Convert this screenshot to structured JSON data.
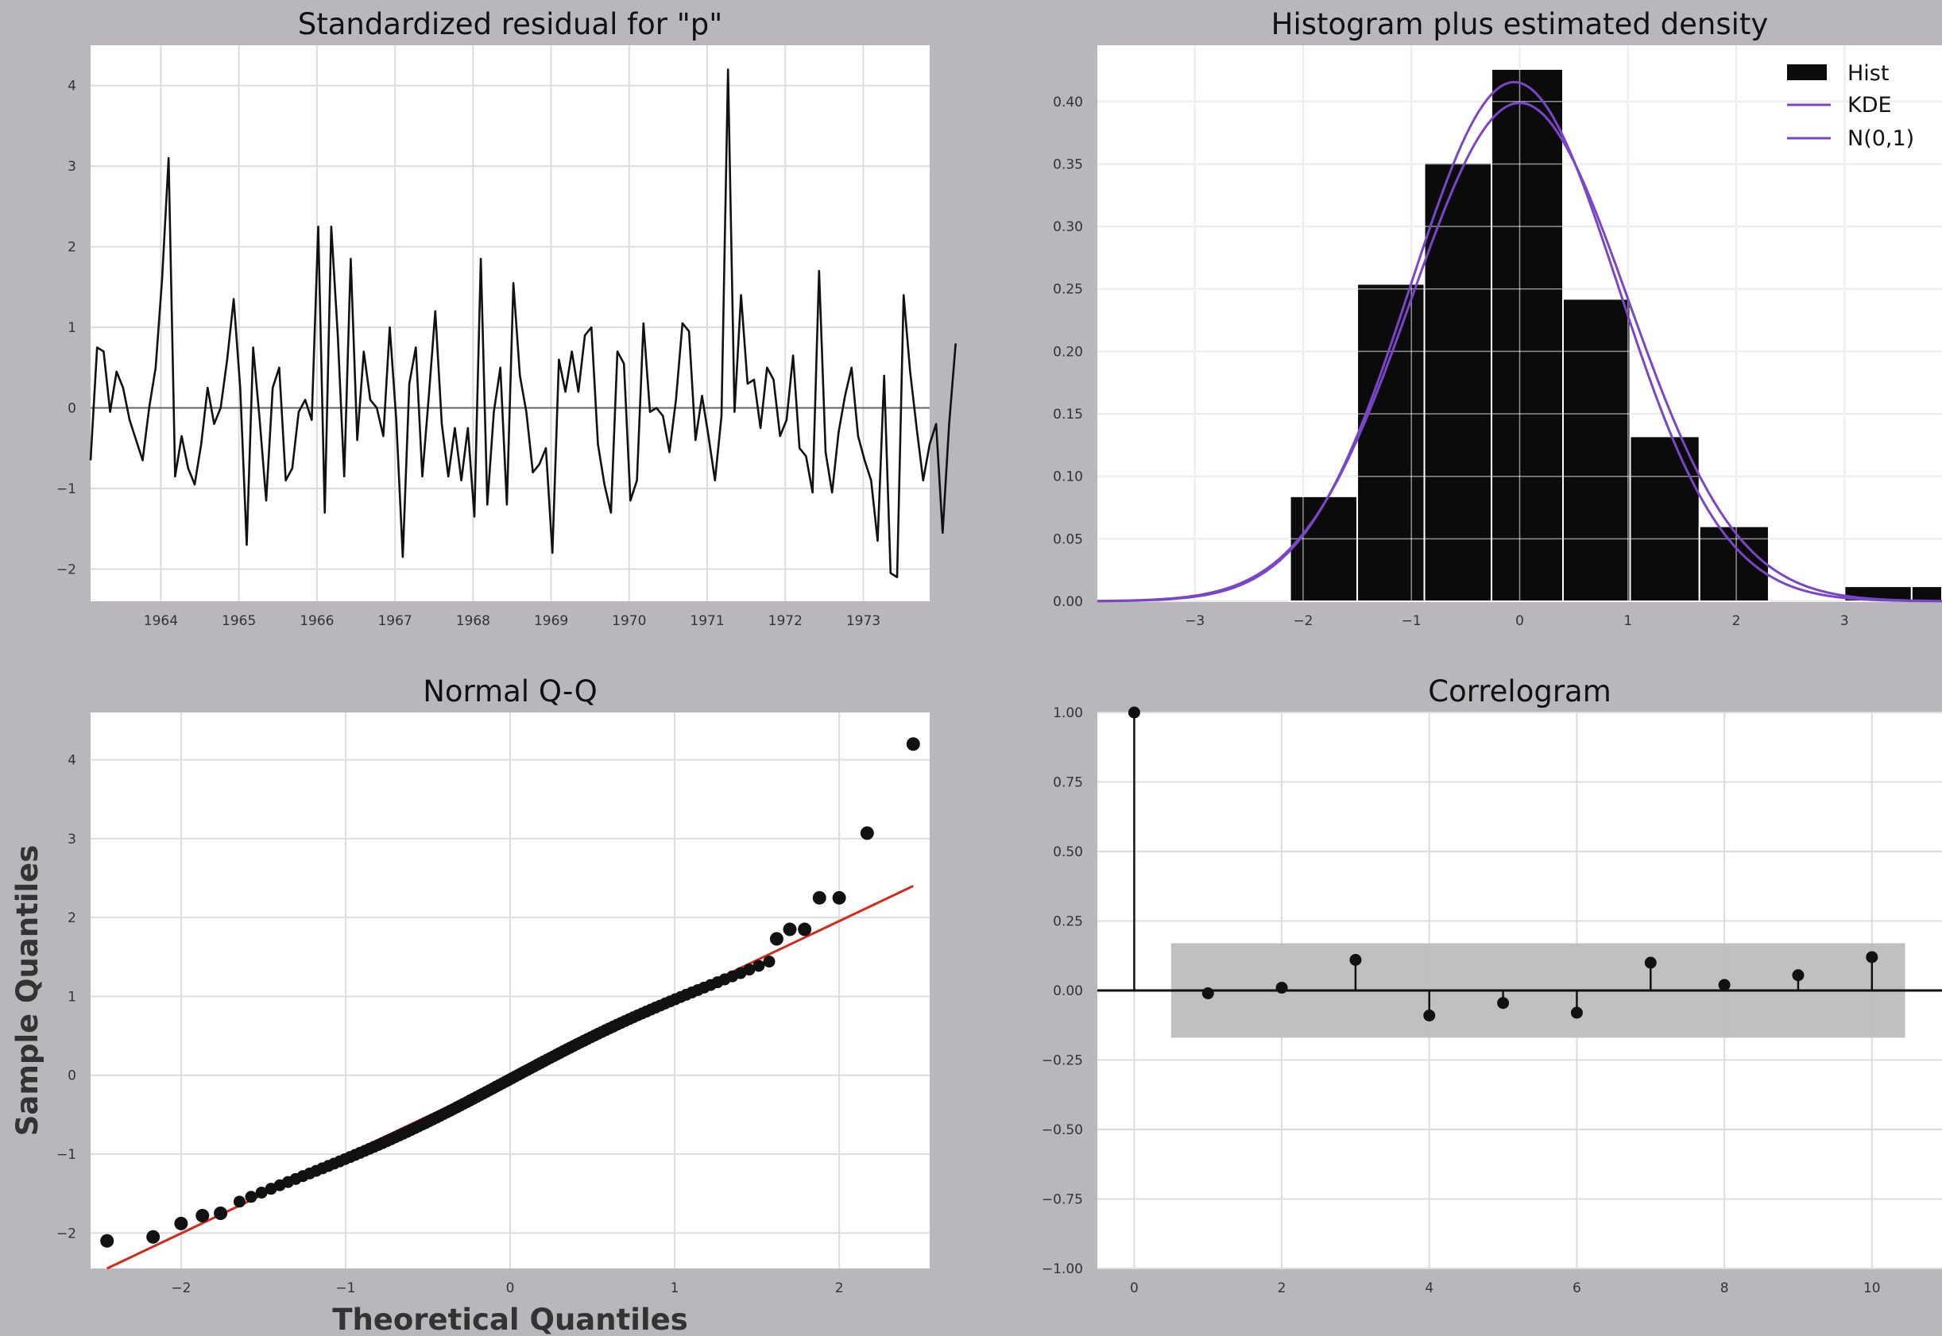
{
  "chart_data": [
    {
      "type": "line",
      "title": "Standardized residual for \"p\"",
      "xlabel": "",
      "ylabel": "",
      "xlim": [
        1963.1,
        1973.85
      ],
      "ylim": [
        -2.4,
        4.5
      ],
      "x_ticks": [
        1964,
        1965,
        1966,
        1967,
        1968,
        1969,
        1970,
        1971,
        1972,
        1973
      ],
      "y_ticks": [
        -2,
        -1,
        0,
        1,
        2,
        3,
        4
      ],
      "y_tick_labels": [
        "−2",
        "−1",
        "0",
        "1",
        "2",
        "3",
        "4"
      ],
      "x_start": 1963.1,
      "x_step": 0.08333,
      "reference_line": 0,
      "grid": true,
      "line_color": "#111111",
      "values": [
        -0.65,
        0.75,
        0.7,
        -0.05,
        0.45,
        0.25,
        -0.15,
        -0.4,
        -0.65,
        0.0,
        0.5,
        1.6,
        3.1,
        -0.85,
        -0.35,
        -0.75,
        -0.95,
        -0.45,
        0.25,
        -0.2,
        0.0,
        0.6,
        1.35,
        0.25,
        -1.7,
        0.75,
        -0.15,
        -1.15,
        0.25,
        0.5,
        -0.9,
        -0.75,
        -0.05,
        0.1,
        -0.15,
        2.25,
        -1.3,
        2.25,
        0.9,
        -0.85,
        1.85,
        -0.4,
        0.7,
        0.1,
        0.0,
        -0.35,
        1.0,
        -0.15,
        -1.85,
        0.3,
        0.75,
        -0.85,
        0.15,
        1.2,
        -0.2,
        -0.85,
        -0.25,
        -0.9,
        -0.25,
        -1.35,
        1.85,
        -1.2,
        -0.05,
        0.5,
        -1.2,
        1.55,
        0.4,
        -0.05,
        -0.8,
        -0.7,
        -0.5,
        -1.8,
        0.6,
        0.2,
        0.7,
        0.2,
        0.9,
        1.0,
        -0.45,
        -0.95,
        -1.3,
        0.7,
        0.55,
        -1.15,
        -0.9,
        1.05,
        -0.05,
        0.0,
        -0.1,
        -0.55,
        0.1,
        1.05,
        0.95,
        -0.4,
        0.15,
        -0.35,
        -0.9,
        -0.1,
        4.2,
        -0.05,
        1.4,
        0.3,
        0.35,
        -0.25,
        0.5,
        0.35,
        -0.35,
        -0.15,
        0.65,
        -0.5,
        -0.6,
        -1.05,
        1.7,
        -0.55,
        -1.05,
        -0.3,
        0.15,
        0.5,
        -0.35,
        -0.65,
        -0.9,
        -1.65,
        0.4,
        -2.05,
        -2.1,
        1.4,
        0.45,
        -0.25,
        -0.9,
        -0.45,
        -0.2,
        -1.55,
        -0.2,
        0.8
      ]
    },
    {
      "type": "bar",
      "title": "Histogram plus estimated density",
      "xlabel": "",
      "ylabel": "",
      "xlim": [
        -3.9,
        3.9
      ],
      "ylim": [
        0,
        0.445
      ],
      "x_ticks": [
        -3,
        -2,
        -1,
        0,
        1,
        2,
        3
      ],
      "x_tick_labels": [
        "−3",
        "−2",
        "−1",
        "0",
        "1",
        "2",
        "3"
      ],
      "y_ticks": [
        0.0,
        0.05,
        0.1,
        0.15,
        0.2,
        0.25,
        0.3,
        0.35,
        0.4
      ],
      "y_tick_labels": [
        "0.00",
        "0.05",
        "0.10",
        "0.15",
        "0.20",
        "0.25",
        "0.30",
        "0.35",
        "0.40"
      ],
      "grid": true,
      "legend_placement": "top-right",
      "bins": [
        {
          "x0": -2.12,
          "x1": -1.5,
          "value": 0.084
        },
        {
          "x0": -1.5,
          "x1": -0.88,
          "value": 0.254
        },
        {
          "x0": -0.88,
          "x1": -0.26,
          "value": 0.351
        },
        {
          "x0": -0.26,
          "x1": 0.4,
          "value": 0.426
        },
        {
          "x0": 0.4,
          "x1": 1.02,
          "value": 0.242
        },
        {
          "x0": 1.02,
          "x1": 1.66,
          "value": 0.132
        },
        {
          "x0": 1.66,
          "x1": 2.3,
          "value": 0.06
        },
        {
          "x0": 3.0,
          "x1": 3.62,
          "value": 0.012
        },
        {
          "x0": 3.62,
          "x1": 4.2,
          "value": 0.012
        }
      ],
      "series": [
        {
          "name": "Hist",
          "color": "#0b0b0b"
        },
        {
          "name": "KDE",
          "color": "#7b45c8",
          "kde_mean": -0.05,
          "kde_sd": 0.96
        },
        {
          "name": "N(0,1)",
          "color": "#7b45c8",
          "mean": 0,
          "sd": 1
        }
      ]
    },
    {
      "type": "scatter",
      "title": "Normal Q-Q",
      "xlabel": "Theoretical Quantiles",
      "ylabel": "Sample Quantiles",
      "xlim": [
        -2.55,
        2.55
      ],
      "ylim": [
        -2.45,
        4.6
      ],
      "x_ticks": [
        -2,
        -1,
        0,
        1,
        2
      ],
      "x_tick_labels": [
        "−2",
        "−1",
        "0",
        "1",
        "2"
      ],
      "y_ticks": [
        -2,
        -1,
        0,
        1,
        2,
        3,
        4
      ],
      "y_tick_labels": [
        "−2",
        "−1",
        "0",
        "1",
        "2",
        "3",
        "4"
      ],
      "grid": true,
      "marker_color": "#111111",
      "reference_line": {
        "color": "#d42a1e",
        "x": [
          -2.45,
          2.45
        ],
        "y": [
          -2.45,
          2.4
        ]
      },
      "n_points": 130,
      "extreme_points": [
        {
          "x": -2.45,
          "y": -2.1
        },
        {
          "x": -2.17,
          "y": -2.05
        },
        {
          "x": -2.0,
          "y": -1.88
        },
        {
          "x": -1.87,
          "y": -1.78
        },
        {
          "x": -1.76,
          "y": -1.75
        },
        {
          "x": 1.62,
          "y": 1.73
        },
        {
          "x": 1.7,
          "y": 1.85
        },
        {
          "x": 1.79,
          "y": 1.85
        },
        {
          "x": 1.88,
          "y": 2.25
        },
        {
          "x": 2.0,
          "y": 2.25
        },
        {
          "x": 2.17,
          "y": 3.07
        },
        {
          "x": 2.45,
          "y": 4.2
        }
      ]
    },
    {
      "type": "scatter",
      "title": "Correlogram",
      "xlabel": "",
      "ylabel": "",
      "xlim": [
        -0.5,
        10.95
      ],
      "ylim": [
        -1.0,
        1.0
      ],
      "x_ticks": [
        0,
        2,
        4,
        6,
        8,
        10
      ],
      "y_ticks": [
        -1.0,
        -0.75,
        -0.5,
        -0.25,
        0.0,
        0.25,
        0.5,
        0.75,
        1.0
      ],
      "y_tick_labels": [
        "−1.00",
        "−0.75",
        "−0.50",
        "−0.25",
        "0.00",
        "0.25",
        "0.50",
        "0.75",
        "1.00"
      ],
      "grid": true,
      "confidence_band": [
        -0.17,
        0.17
      ],
      "confidence_color": "#bdbdbd",
      "lags": [
        0,
        1,
        2,
        3,
        4,
        5,
        6,
        7,
        8,
        9,
        10
      ],
      "values": [
        1.0,
        -0.01,
        0.01,
        0.11,
        -0.09,
        -0.045,
        -0.08,
        0.1,
        0.02,
        0.055,
        0.12
      ]
    }
  ]
}
